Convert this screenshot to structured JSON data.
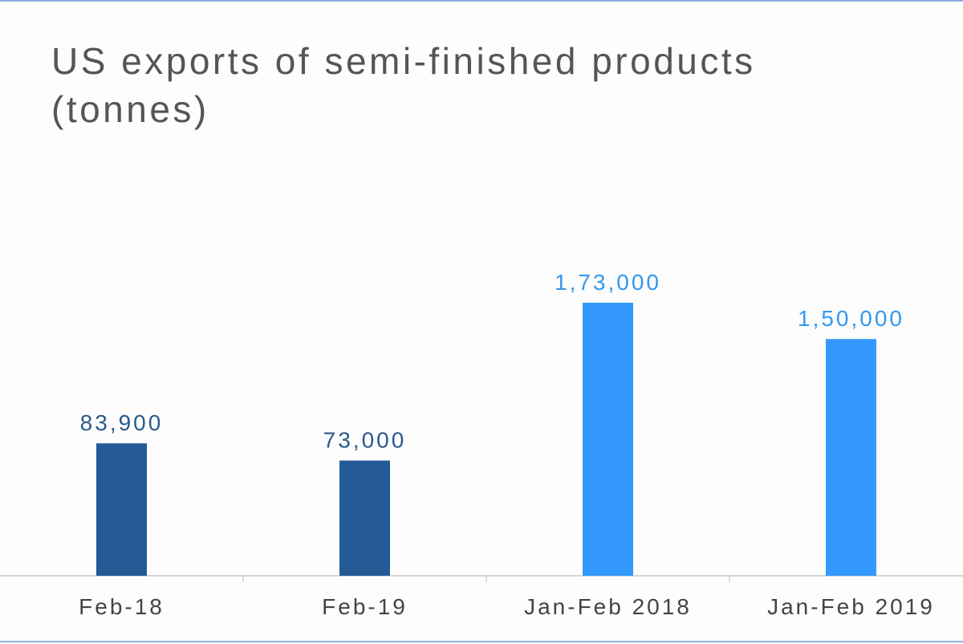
{
  "chart_data": {
    "type": "bar",
    "title": "US exports of semi-finished products (tonnes)",
    "categories": [
      "Feb-18",
      "Feb-19",
      "Jan-Feb 2018",
      "Jan-Feb 2019"
    ],
    "values": [
      83900,
      73000,
      173000,
      150000
    ],
    "data_labels": [
      "83,900",
      "73,000",
      "1,73,000",
      "1,50,000"
    ],
    "bar_colors": [
      "#245a96",
      "#245a96",
      "#3399ff",
      "#3399ff"
    ],
    "label_colors": [
      "#2a5a8c",
      "#2a5a8c",
      "#3399ee",
      "#3399ee"
    ],
    "xlabel": "",
    "ylabel": "",
    "ylim": [
      0,
      200000
    ],
    "grid": false,
    "legend": "none"
  }
}
